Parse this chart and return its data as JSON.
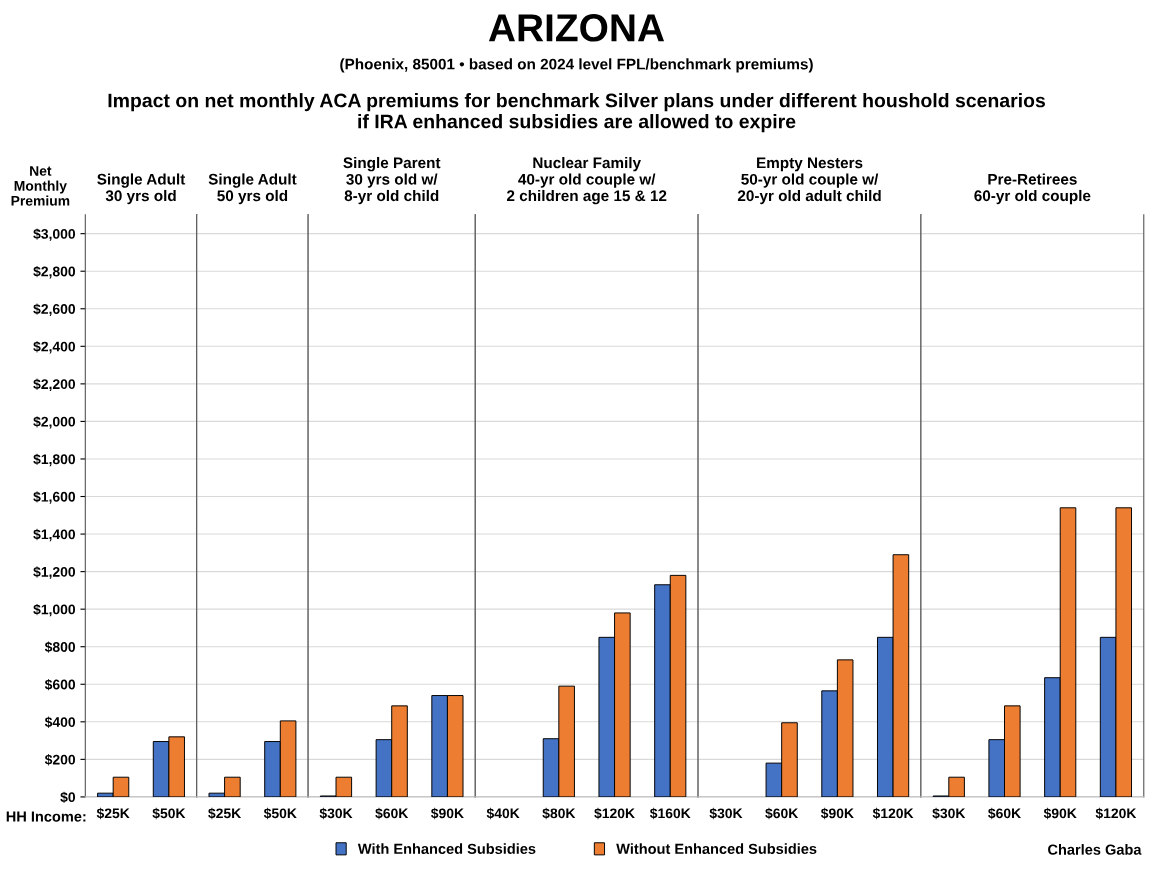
{
  "chart_data": [
    {
      "type": "bar",
      "title": "Single Adult\n30 yrs old",
      "ylabel": "Net\nMonthly\nPremium",
      "categories": [
        "$25K",
        "$50K"
      ],
      "series": [
        {
          "name": "With Enhanced Subsidies",
          "color": "#4472c4",
          "values": [
            20,
            295
          ]
        },
        {
          "name": "Without Enhanced Subsidies",
          "color": "#ed7d31",
          "values": [
            105,
            320
          ]
        }
      ],
      "ylim": [
        0,
        3100
      ],
      "yticks": [
        {
          "value": 0,
          "label": "$0"
        },
        {
          "value": 200,
          "label": "$200"
        },
        {
          "value": 400,
          "label": "$400"
        },
        {
          "value": 600,
          "label": "$600"
        },
        {
          "value": 800,
          "label": "$800"
        },
        {
          "value": 1000,
          "label": "$1,000"
        },
        {
          "value": 1200,
          "label": "$1,200"
        },
        {
          "value": 1400,
          "label": "$1,400"
        },
        {
          "value": 1600,
          "label": "$1,600"
        },
        {
          "value": 1800,
          "label": "$1,800"
        },
        {
          "value": 2000,
          "label": "$2,000"
        },
        {
          "value": 2200,
          "label": "$2,200"
        },
        {
          "value": 2400,
          "label": "$2,400"
        },
        {
          "value": 2600,
          "label": "$2,600"
        },
        {
          "value": 2800,
          "label": "$2,800"
        },
        {
          "value": 3000,
          "label": "$3,000"
        }
      ],
      "grid": "y",
      "legend": "bottom",
      "annotations": [
        "ARIZONA",
        "(Phoenix, 85001 • based on 2024 level FPL/benchmark premiums)",
        "Impact on net monthly ACA premiums for benchmark Silver plans under different houshold scenarios\nif IRA enhanced subsidies are allowed to expire",
        "HH Income:",
        "Charles Gaba"
      ]
    },
    {
      "type": "bar",
      "title": "Single Adult\n50 yrs old",
      "categories": [
        "$25K",
        "$50K"
      ],
      "series": [
        {
          "color": "#4472c4",
          "values": [
            20,
            295
          ]
        },
        {
          "color": "#ed7d31",
          "values": [
            105,
            405
          ]
        }
      ],
      "ylim": [
        0,
        3100
      ],
      "grid": "y",
      "tick_labels": "x"
    },
    {
      "type": "bar",
      "title": "Single Parent\n30 yrs old w/\n8-yr old child",
      "categories": [
        "$30K",
        "$60K",
        "$90K"
      ],
      "series": [
        {
          "color": "#4472c4",
          "values": [
            5,
            305,
            540
          ]
        },
        {
          "color": "#ed7d31",
          "values": [
            105,
            485,
            540
          ]
        }
      ],
      "ylim": [
        0,
        3100
      ],
      "grid": "y",
      "tick_labels": "x"
    },
    {
      "type": "bar",
      "title": "Nuclear Family\n40-yr old couple w/\n2 children age 15 & 12",
      "categories": [
        "$40K",
        "$80K",
        "$120K",
        "$160K"
      ],
      "series": [
        {
          "color": "#4472c4",
          "values": [
            null,
            310,
            850,
            1130
          ]
        },
        {
          "color": "#ed7d31",
          "values": [
            null,
            590,
            980,
            1180
          ]
        }
      ],
      "ylim": [
        0,
        3100
      ],
      "grid": "y",
      "tick_labels": "x"
    },
    {
      "type": "bar",
      "title": "Empty Nesters\n50-yr old couple w/\n20-yr old adult child",
      "categories": [
        "$30K",
        "$60K",
        "$90K",
        "$120K"
      ],
      "series": [
        {
          "color": "#4472c4",
          "values": [
            null,
            180,
            565,
            850
          ]
        },
        {
          "color": "#ed7d31",
          "values": [
            null,
            395,
            730,
            1290
          ]
        }
      ],
      "ylim": [
        0,
        3100
      ],
      "grid": "y",
      "tick_labels": "x"
    },
    {
      "type": "bar",
      "title": "Pre-Retirees\n60-yr old couple",
      "categories": [
        "$30K",
        "$60K",
        "$90K",
        "$120K"
      ],
      "series": [
        {
          "color": "#4472c4",
          "values": [
            5,
            305,
            635,
            850
          ]
        },
        {
          "color": "#ed7d31",
          "values": [
            105,
            485,
            1540,
            1540
          ]
        }
      ],
      "ylim": [
        0,
        3100
      ],
      "grid": "y",
      "tick_labels": "x"
    }
  ]
}
